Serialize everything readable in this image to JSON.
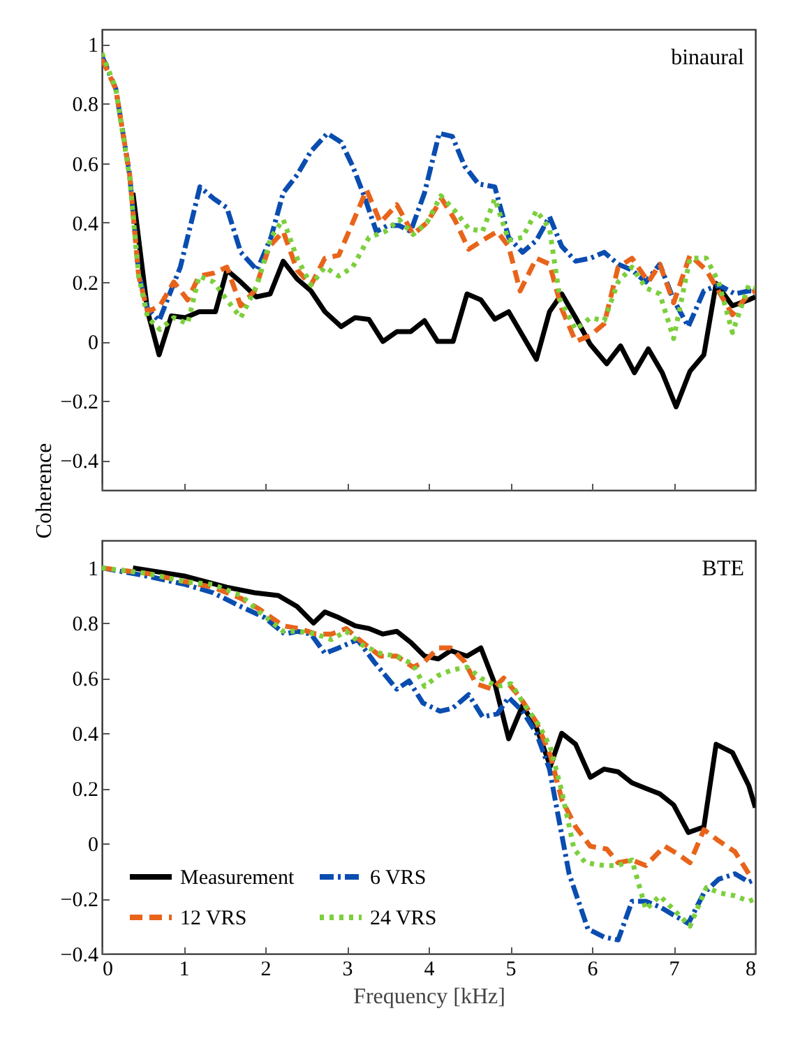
{
  "chart_data": [
    {
      "type": "line",
      "title": "binaural",
      "ylabel": "Coherence",
      "xlim": [
        0,
        8
      ],
      "xticks": [
        0,
        1,
        2,
        3,
        4,
        5,
        6,
        7,
        8
      ],
      "ylim": [
        -0.5,
        1.05
      ],
      "yticks": [
        -0.4,
        -0.2,
        0,
        0.2,
        0.4,
        0.6,
        0.8,
        1
      ],
      "tick_labels": "y",
      "legend": false,
      "series": [
        {
          "color": "#000000",
          "line_style": "solid",
          "x": [
            0.38,
            0.56,
            0.7,
            0.85,
            1.02,
            1.19,
            1.39,
            1.53,
            1.7,
            1.89,
            2.06,
            2.22,
            2.39,
            2.56,
            2.73,
            2.93,
            3.1,
            3.27,
            3.44,
            3.61,
            3.78,
            3.95,
            4.11,
            4.3,
            4.47,
            4.64,
            4.81,
            4.98,
            5.15,
            5.32,
            5.48,
            5.63,
            5.8,
            5.98,
            6.18,
            6.35,
            6.52,
            6.69,
            6.86,
            7.03,
            7.2,
            7.37,
            7.52,
            7.72,
            7.92,
            8
          ],
          "values": [
            0.5,
            0.1,
            -0.045,
            0.086,
            0.08,
            0.1,
            0.1,
            0.24,
            0.2,
            0.15,
            0.16,
            0.27,
            0.21,
            0.17,
            0.1,
            0.05,
            0.08,
            0.074,
            0,
            0.033,
            0.033,
            0.07,
            0,
            0,
            0.16,
            0.14,
            0.075,
            0.1,
            0.02,
            -0.06,
            0.1,
            0.16,
            0.08,
            -0.01,
            -0.075,
            -0.015,
            -0.105,
            -0.025,
            -0.105,
            -0.22,
            -0.1,
            -0.045,
            0.195,
            0.12,
            0.14,
            0.15
          ]
        },
        {
          "color": "#0a4db0",
          "line_style": "dashdot",
          "x": [
            0,
            0.17,
            0.34,
            0.45,
            0.56,
            0.7,
            0.96,
            1.2,
            1.37,
            1.53,
            1.7,
            1.9,
            2.07,
            2.22,
            2.39,
            2.56,
            2.76,
            2.93,
            3.07,
            3.21,
            3.36,
            3.5,
            3.64,
            3.78,
            3.95,
            4.13,
            4.29,
            4.44,
            4.61,
            4.81,
            4.98,
            5.15,
            5.32,
            5.48,
            5.63,
            5.8,
            5.98,
            6.15,
            6.32,
            6.49,
            6.66,
            6.83,
            7.0,
            7.18,
            7.37,
            7.55,
            7.75,
            7.92,
            8
          ],
          "values": [
            0.96,
            0.85,
            0.56,
            0.23,
            0.11,
            0.07,
            0.25,
            0.52,
            0.48,
            0.45,
            0.3,
            0.24,
            0.35,
            0.5,
            0.56,
            0.64,
            0.7,
            0.67,
            0.59,
            0.49,
            0.37,
            0.39,
            0.39,
            0.37,
            0.5,
            0.7,
            0.69,
            0.59,
            0.53,
            0.52,
            0.35,
            0.3,
            0.34,
            0.42,
            0.32,
            0.27,
            0.28,
            0.3,
            0.26,
            0.24,
            0.2,
            0.26,
            0.14,
            0.05,
            0.17,
            0.19,
            0.16,
            0.17,
            0.17
          ]
        },
        {
          "color": "#e8641b",
          "line_style": "dashed",
          "x": [
            0,
            0.17,
            0.34,
            0.45,
            0.56,
            0.71,
            0.88,
            1.05,
            1.19,
            1.37,
            1.53,
            1.7,
            1.87,
            2.05,
            2.22,
            2.39,
            2.56,
            2.73,
            2.9,
            3.04,
            3.24,
            3.41,
            3.61,
            3.81,
            3.98,
            4.16,
            4.32,
            4.49,
            4.66,
            4.84,
            4.98,
            5.12,
            5.32,
            5.48,
            5.63,
            5.8,
            5.98,
            6.15,
            6.32,
            6.49,
            6.69,
            6.83,
            7.0,
            7.2,
            7.4,
            7.57,
            7.72,
            7.92,
            8
          ],
          "values": [
            0.95,
            0.85,
            0.56,
            0.22,
            0.1,
            0.12,
            0.2,
            0.14,
            0.22,
            0.23,
            0.25,
            0.12,
            0.17,
            0.32,
            0.37,
            0.24,
            0.19,
            0.28,
            0.29,
            0.38,
            0.51,
            0.4,
            0.46,
            0.36,
            0.4,
            0.48,
            0.41,
            0.31,
            0.34,
            0.37,
            0.32,
            0.17,
            0.28,
            0.26,
            0.11,
            0,
            0.02,
            0.06,
            0.25,
            0.28,
            0.2,
            0.26,
            0.13,
            0.29,
            0.24,
            0.16,
            0.09,
            0.16,
            0.17
          ]
        },
        {
          "color": "#7ccf3c",
          "line_style": "dotted",
          "x": [
            0,
            0.17,
            0.34,
            0.45,
            0.56,
            0.71,
            0.88,
            1.05,
            1.19,
            1.37,
            1.53,
            1.7,
            1.9,
            2.07,
            2.22,
            2.39,
            2.56,
            2.73,
            2.9,
            3.07,
            3.27,
            3.47,
            3.64,
            3.81,
            3.98,
            4.15,
            4.32,
            4.49,
            4.66,
            4.81,
            4.98,
            5.15,
            5.32,
            5.48,
            5.61,
            5.8,
            5.98,
            6.15,
            6.32,
            6.49,
            6.66,
            6.83,
            7.0,
            7.2,
            7.4,
            7.55,
            7.72,
            7.92,
            8
          ],
          "values": [
            0.97,
            0.85,
            0.55,
            0.22,
            0.08,
            0.04,
            0.08,
            0.06,
            0.22,
            0.2,
            0.14,
            0.08,
            0.19,
            0.35,
            0.41,
            0.28,
            0.19,
            0.25,
            0.22,
            0.25,
            0.35,
            0.37,
            0.41,
            0.36,
            0.4,
            0.49,
            0.44,
            0.38,
            0.37,
            0.48,
            0.34,
            0.35,
            0.44,
            0.38,
            0.14,
            0.04,
            0.08,
            0.07,
            0.2,
            0.25,
            0.18,
            0.16,
            0.01,
            0.28,
            0.28,
            0.2,
            0.03,
            0.19,
            0.18
          ]
        }
      ]
    },
    {
      "type": "line",
      "title": "BTE",
      "xlabel": "Frequency [kHz]",
      "xlim": [
        0,
        8
      ],
      "xticks": [
        0,
        1,
        2,
        3,
        4,
        5,
        6,
        7,
        8
      ],
      "ylim": [
        -0.4,
        1.1
      ],
      "yticks": [
        -0.4,
        -0.2,
        0,
        0.2,
        0.4,
        0.6,
        0.8,
        1
      ],
      "legend": "bottom left",
      "series": [
        {
          "name": "Measurement",
          "color": "#000000",
          "line_style": "solid",
          "x": [
            0.38,
            1.02,
            1.53,
            1.87,
            2.16,
            2.39,
            2.59,
            2.73,
            2.9,
            3.1,
            3.27,
            3.44,
            3.61,
            3.78,
            3.95,
            4.12,
            4.27,
            4.47,
            4.64,
            4.81,
            4.98,
            5.15,
            5.32,
            5.49,
            5.63,
            5.8,
            5.98,
            6.15,
            6.32,
            6.49,
            6.66,
            6.83,
            7.0,
            7.18,
            7.37,
            7.52,
            7.72,
            7.92,
            8
          ],
          "values": [
            1.0,
            0.97,
            0.93,
            0.91,
            0.9,
            0.86,
            0.8,
            0.84,
            0.82,
            0.79,
            0.78,
            0.76,
            0.77,
            0.73,
            0.68,
            0.67,
            0.7,
            0.68,
            0.71,
            0.58,
            0.38,
            0.5,
            0.42,
            0.28,
            0.4,
            0.36,
            0.24,
            0.27,
            0.26,
            0.22,
            0.2,
            0.18,
            0.14,
            0.04,
            0.06,
            0.36,
            0.33,
            0.21,
            0.13
          ]
        },
        {
          "name": "6 VRS",
          "color": "#0a4db0",
          "line_style": "dashdot",
          "x": [
            0,
            0.56,
            1.02,
            1.36,
            1.7,
            1.99,
            2.24,
            2.39,
            2.56,
            2.73,
            2.9,
            3.13,
            3.33,
            3.47,
            3.61,
            3.76,
            3.93,
            4.14,
            4.29,
            4.49,
            4.66,
            4.84,
            4.98,
            5.15,
            5.32,
            5.48,
            5.58,
            5.72,
            5.95,
            6.15,
            6.32,
            6.49,
            6.66,
            6.83,
            7.0,
            7.18,
            7.37,
            7.55,
            7.75,
            7.92,
            8
          ],
          "values": [
            1.0,
            0.97,
            0.94,
            0.91,
            0.86,
            0.82,
            0.76,
            0.77,
            0.76,
            0.69,
            0.71,
            0.74,
            0.66,
            0.61,
            0.56,
            0.59,
            0.51,
            0.48,
            0.49,
            0.54,
            0.46,
            0.47,
            0.53,
            0.48,
            0.4,
            0.27,
            0.11,
            -0.11,
            -0.31,
            -0.34,
            -0.35,
            -0.21,
            -0.21,
            -0.23,
            -0.26,
            -0.29,
            -0.18,
            -0.13,
            -0.11,
            -0.14,
            -0.13
          ]
        },
        {
          "name": "12 VRS",
          "color": "#e8641b",
          "line_style": "dashed",
          "x": [
            0,
            0.56,
            1.02,
            1.36,
            1.7,
            1.93,
            2.22,
            2.42,
            2.62,
            2.81,
            2.99,
            3.19,
            3.41,
            3.61,
            3.81,
            3.95,
            4.12,
            4.27,
            4.44,
            4.58,
            4.78,
            4.92,
            5.12,
            5.32,
            5.49,
            5.63,
            5.8,
            5.98,
            6.18,
            6.32,
            6.49,
            6.66,
            6.89,
            7.06,
            7.2,
            7.37,
            7.55,
            7.75,
            7.92,
            8
          ],
          "values": [
            1.0,
            0.98,
            0.95,
            0.93,
            0.89,
            0.85,
            0.79,
            0.78,
            0.76,
            0.76,
            0.78,
            0.73,
            0.68,
            0.68,
            0.64,
            0.66,
            0.71,
            0.71,
            0.66,
            0.58,
            0.56,
            0.6,
            0.53,
            0.44,
            0.32,
            0.16,
            0.06,
            -0.01,
            -0.02,
            -0.07,
            -0.06,
            -0.08,
            -0.01,
            -0.04,
            -0.07,
            0.05,
            0.01,
            -0.03,
            -0.11,
            -0.1
          ]
        },
        {
          "name": "24 VRS",
          "color": "#7ccf3c",
          "line_style": "dotted",
          "x": [
            0,
            0.56,
            1.02,
            1.36,
            1.7,
            1.93,
            2.22,
            2.42,
            2.62,
            2.81,
            2.99,
            3.19,
            3.41,
            3.61,
            3.81,
            3.95,
            4.12,
            4.29,
            4.47,
            4.64,
            4.84,
            5.01,
            5.18,
            5.35,
            5.49,
            5.63,
            5.78,
            5.92,
            6.15,
            6.32,
            6.49,
            6.66,
            6.83,
            7.0,
            7.2,
            7.4,
            7.57,
            7.75,
            7.92,
            8
          ],
          "values": [
            1.0,
            0.98,
            0.95,
            0.94,
            0.9,
            0.84,
            0.77,
            0.77,
            0.76,
            0.74,
            0.77,
            0.72,
            0.69,
            0.68,
            0.65,
            0.57,
            0.61,
            0.63,
            0.64,
            0.6,
            0.57,
            0.58,
            0.5,
            0.43,
            0.35,
            0.19,
            -0.02,
            -0.07,
            -0.08,
            -0.08,
            -0.06,
            -0.24,
            -0.19,
            -0.24,
            -0.3,
            -0.16,
            -0.18,
            -0.19,
            -0.21,
            -0.2
          ]
        }
      ]
    }
  ]
}
